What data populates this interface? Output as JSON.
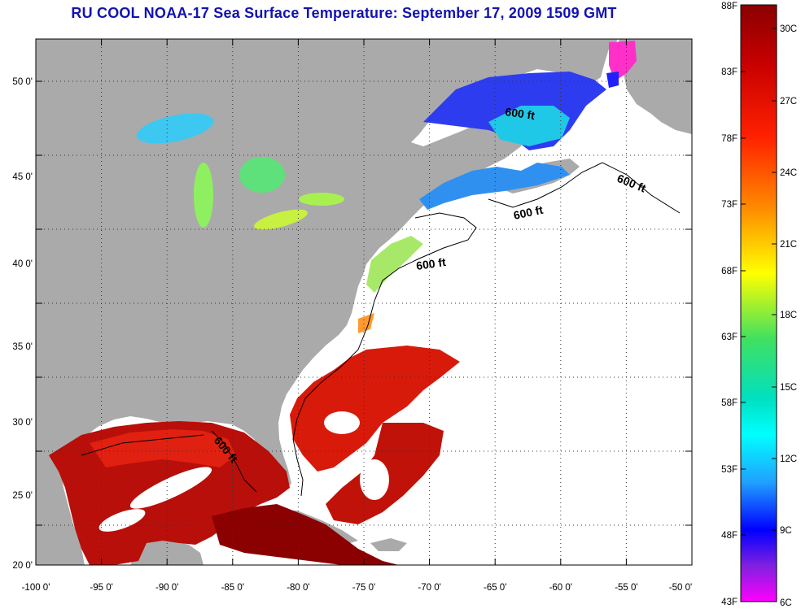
{
  "title": "RU COOL  NOAA-17  Sea Surface Temperature:  September 17, 2009 1509 GMT",
  "map": {
    "lat_ticks": [
      "50 0'",
      "45 0'",
      "40 0'",
      "35 0'",
      "30 0'",
      "25 0'",
      "20 0'"
    ],
    "lon_ticks": [
      "-100 0'",
      "-95 0'",
      "-90 0'",
      "-85 0'",
      "-80 0'",
      "-75 0'",
      "-70 0'",
      "-65 0'",
      "-60 0'",
      "-55 0'",
      "-50 0'"
    ],
    "contour_label": "600 ft",
    "contour_labels": [
      "600 ft",
      "600 ft",
      "600 ft",
      "600 ft",
      "600 ft"
    ],
    "colors": {
      "land": "#aaaaaa",
      "no_data": "#ffffff"
    }
  },
  "colorbar": {
    "fahrenheit_labels": [
      "88F",
      "83F",
      "78F",
      "73F",
      "68F",
      "63F",
      "58F",
      "53F",
      "48F",
      "43F"
    ],
    "celsius_labels": [
      "30C",
      "27C",
      "24C",
      "21C",
      "18C",
      "15C",
      "12C",
      "9C",
      "6C"
    ],
    "colors": [
      "#8b0000",
      "#ff0000",
      "#ff8000",
      "#ffff00",
      "#00e676",
      "#00ffff",
      "#0000ff",
      "#ff00ff"
    ]
  }
}
